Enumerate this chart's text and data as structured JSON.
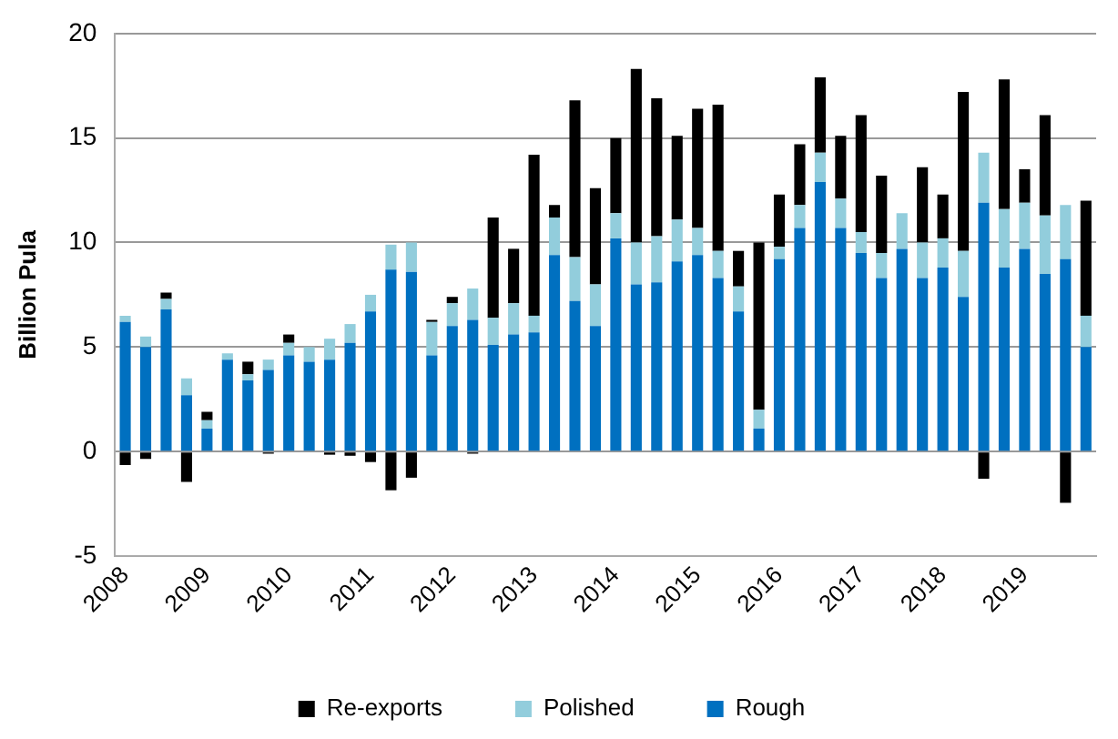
{
  "chart_data": {
    "type": "bar",
    "stacked": true,
    "ylabel": "Billion Pula",
    "categories": [
      "2008",
      null,
      null,
      null,
      "2009",
      null,
      null,
      null,
      "2010",
      null,
      null,
      null,
      "2011",
      null,
      null,
      null,
      "2012",
      null,
      null,
      null,
      "2013",
      null,
      null,
      null,
      "2014",
      null,
      null,
      null,
      "2015",
      null,
      null,
      null,
      "2016",
      null,
      null,
      null,
      "2017",
      null,
      null,
      null,
      "2018",
      null,
      null,
      null,
      "2019",
      null,
      null,
      null
    ],
    "series": [
      {
        "name": "Rough",
        "color": "#0070c0",
        "values": [
          6.2,
          5.0,
          6.8,
          2.7,
          1.1,
          4.4,
          3.4,
          3.9,
          4.6,
          4.3,
          4.4,
          5.2,
          6.7,
          8.7,
          8.6,
          4.6,
          6.0,
          6.3,
          5.1,
          5.6,
          5.7,
          9.4,
          7.2,
          6.0,
          10.2,
          8.0,
          8.1,
          9.1,
          9.4,
          8.3,
          6.7,
          1.1,
          9.2,
          10.7,
          12.9,
          10.7,
          9.5,
          8.3,
          9.7,
          8.3,
          8.8,
          7.4,
          11.9,
          8.8,
          9.7,
          8.5,
          9.2,
          5.0
        ]
      },
      {
        "name": "Polished",
        "color": "#92cddc",
        "values": [
          0.3,
          0.5,
          0.5,
          0.8,
          0.4,
          0.3,
          0.3,
          0.5,
          0.6,
          0.7,
          1.0,
          0.9,
          0.8,
          1.2,
          1.4,
          1.6,
          1.1,
          1.5,
          1.3,
          1.5,
          0.8,
          1.8,
          2.1,
          2.0,
          1.2,
          2.0,
          2.2,
          2.0,
          1.3,
          1.3,
          1.2,
          0.9,
          0.6,
          1.1,
          1.4,
          1.4,
          1.0,
          1.2,
          1.7,
          1.7,
          1.4,
          2.2,
          2.4,
          2.8,
          2.2,
          2.8,
          2.6,
          1.5
        ]
      },
      {
        "name": "Re-exports",
        "color": "#000000",
        "values": [
          -0.65,
          -0.35,
          0.3,
          -1.45,
          0.4,
          0,
          0.6,
          -0.1,
          0.4,
          0,
          -0.15,
          -0.2,
          -0.5,
          -1.85,
          -1.25,
          0.1,
          0.3,
          -0.1,
          4.8,
          2.6,
          7.7,
          0.6,
          7.5,
          4.6,
          3.6,
          8.3,
          6.6,
          4.0,
          5.7,
          7.0,
          1.7,
          8.0,
          2.5,
          2.9,
          3.6,
          3.0,
          5.6,
          3.7,
          0,
          3.6,
          2.1,
          7.6,
          -1.3,
          6.2,
          1.6,
          4.8,
          -2.45,
          5.5
        ]
      }
    ],
    "ylim": [
      -5,
      20
    ],
    "yticks": [
      -5,
      0,
      5,
      10,
      15,
      20
    ],
    "grid": "y",
    "legend": "bottom"
  }
}
